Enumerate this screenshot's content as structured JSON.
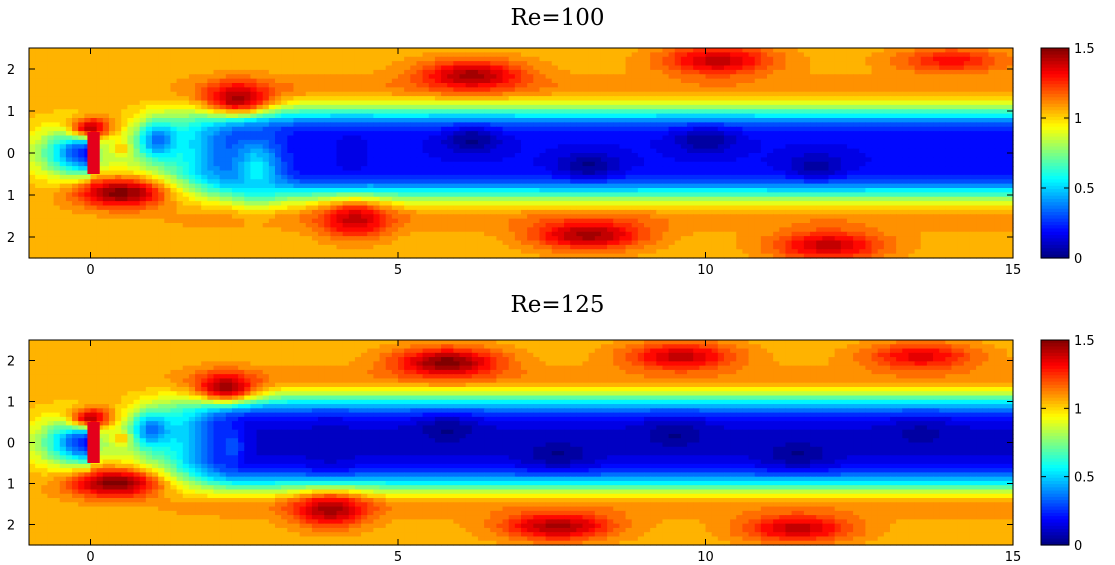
{
  "chart_data": [
    {
      "type": "heatmap",
      "title": "Re=100",
      "xlim": [
        -1,
        15
      ],
      "ylim": [
        -2.5,
        2.5
      ],
      "xticks": [
        0,
        5,
        10,
        15
      ],
      "yticks": [
        2,
        1,
        0,
        -1,
        -2
      ],
      "ytick_labels": [
        "2",
        "1",
        "0",
        "1",
        "2"
      ],
      "colorbar": {
        "range": [
          0,
          1.5
        ],
        "ticks": [
          0,
          0.5,
          1,
          1.5
        ],
        "tick_labels": [
          "0",
          "0.5",
          "1",
          "1.5"
        ],
        "colormap": "jet"
      },
      "obstacle": {
        "x": [
          -0.05,
          0.15
        ],
        "y": [
          -0.5,
          0.5
        ],
        "color": "#e4001b"
      },
      "field": {
        "background": 1.05,
        "wake_halfwidth": 1.05,
        "wake_value": 0.18,
        "wake_start": 2.8,
        "blobs": [
          {
            "x": 2.4,
            "y": 1.3,
            "v": 1.45,
            "rx": 0.55,
            "ry": 0.38
          },
          {
            "x": 0.5,
            "y": -0.95,
            "v": 1.5,
            "rx": 0.75,
            "ry": 0.35
          },
          {
            "x": 0.0,
            "y": 0.6,
            "v": 1.4,
            "rx": 0.35,
            "ry": 0.25
          },
          {
            "x": 4.3,
            "y": -1.6,
            "v": 1.4,
            "rx": 0.55,
            "ry": 0.42
          },
          {
            "x": 6.2,
            "y": 1.85,
            "v": 1.45,
            "rx": 0.85,
            "ry": 0.35
          },
          {
            "x": 8.1,
            "y": -1.95,
            "v": 1.45,
            "rx": 0.9,
            "ry": 0.35
          },
          {
            "x": 10.2,
            "y": 2.2,
            "v": 1.4,
            "rx": 0.9,
            "ry": 0.35
          },
          {
            "x": 12.0,
            "y": -2.2,
            "v": 1.4,
            "rx": 0.9,
            "ry": 0.35
          },
          {
            "x": 14.0,
            "y": 2.2,
            "v": 1.3,
            "rx": 0.9,
            "ry": 0.3
          },
          {
            "x": 2.7,
            "y": -0.4,
            "v": 0.55,
            "rx": 0.4,
            "ry": 0.75
          },
          {
            "x": 4.25,
            "y": 0.0,
            "v": 0.15,
            "rx": 0.22,
            "ry": 0.45
          },
          {
            "x": 1.1,
            "y": 0.3,
            "v": 0.35,
            "rx": 0.35,
            "ry": 0.45
          },
          {
            "x": 0.5,
            "y": 0.1,
            "v": 1.05,
            "rx": 0.15,
            "ry": 0.15
          },
          {
            "x": 6.2,
            "y": 0.3,
            "v": 0.02,
            "rx": 0.45,
            "ry": 0.3
          },
          {
            "x": 8.1,
            "y": -0.3,
            "v": 0.02,
            "rx": 0.5,
            "ry": 0.3
          },
          {
            "x": 10.0,
            "y": 0.3,
            "v": 0.03,
            "rx": 0.5,
            "ry": 0.3
          },
          {
            "x": 11.8,
            "y": -0.3,
            "v": 0.05,
            "rx": 0.5,
            "ry": 0.3
          }
        ]
      }
    },
    {
      "type": "heatmap",
      "title": "Re=125",
      "xlim": [
        -1,
        15
      ],
      "ylim": [
        -2.5,
        2.5
      ],
      "xticks": [
        0,
        5,
        10,
        15
      ],
      "yticks": [
        2,
        1,
        0,
        -1,
        -2
      ],
      "ytick_labels": [
        "2",
        "1",
        "0",
        "1",
        "2"
      ],
      "colorbar": {
        "range": [
          0,
          1.5
        ],
        "ticks": [
          0,
          0.5,
          1,
          1.5
        ],
        "tick_labels": [
          "0",
          "0.5",
          "1",
          "1.5"
        ],
        "colormap": "jet"
      },
      "obstacle": {
        "x": [
          -0.05,
          0.15
        ],
        "y": [
          -0.5,
          0.5
        ],
        "color": "#e4001b"
      },
      "field": {
        "background": 1.05,
        "wake_halfwidth": 1.1,
        "wake_value": 0.12,
        "wake_start": 2.6,
        "blobs": [
          {
            "x": 2.2,
            "y": 1.35,
            "v": 1.45,
            "rx": 0.5,
            "ry": 0.35
          },
          {
            "x": 0.4,
            "y": -1.0,
            "v": 1.5,
            "rx": 0.75,
            "ry": 0.35
          },
          {
            "x": 0.0,
            "y": 0.6,
            "v": 1.4,
            "rx": 0.35,
            "ry": 0.25
          },
          {
            "x": 3.9,
            "y": -1.65,
            "v": 1.45,
            "rx": 0.6,
            "ry": 0.4
          },
          {
            "x": 5.8,
            "y": 1.95,
            "v": 1.5,
            "rx": 0.85,
            "ry": 0.35
          },
          {
            "x": 7.6,
            "y": -2.05,
            "v": 1.45,
            "rx": 0.9,
            "ry": 0.33
          },
          {
            "x": 9.6,
            "y": 2.1,
            "v": 1.4,
            "rx": 0.9,
            "ry": 0.33
          },
          {
            "x": 11.5,
            "y": -2.1,
            "v": 1.4,
            "rx": 0.9,
            "ry": 0.33
          },
          {
            "x": 13.5,
            "y": 2.1,
            "v": 1.35,
            "rx": 0.9,
            "ry": 0.32
          },
          {
            "x": 2.3,
            "y": -0.1,
            "v": 0.3,
            "rx": 0.2,
            "ry": 0.55
          },
          {
            "x": 3.9,
            "y": -0.1,
            "v": 0.1,
            "rx": 0.35,
            "ry": 0.5
          },
          {
            "x": 1.0,
            "y": 0.3,
            "v": 0.35,
            "rx": 0.35,
            "ry": 0.45
          },
          {
            "x": 0.5,
            "y": 0.1,
            "v": 1.05,
            "rx": 0.15,
            "ry": 0.15
          },
          {
            "x": 5.8,
            "y": 0.3,
            "v": 0.02,
            "rx": 0.45,
            "ry": 0.3
          },
          {
            "x": 7.6,
            "y": -0.3,
            "v": 0.02,
            "rx": 0.5,
            "ry": 0.3
          },
          {
            "x": 9.5,
            "y": 0.2,
            "v": 0.02,
            "rx": 0.5,
            "ry": 0.3
          },
          {
            "x": 11.5,
            "y": -0.3,
            "v": 0.02,
            "rx": 0.5,
            "ry": 0.3
          },
          {
            "x": 13.5,
            "y": 0.2,
            "v": 0.05,
            "rx": 0.5,
            "ry": 0.3
          }
        ]
      }
    }
  ]
}
